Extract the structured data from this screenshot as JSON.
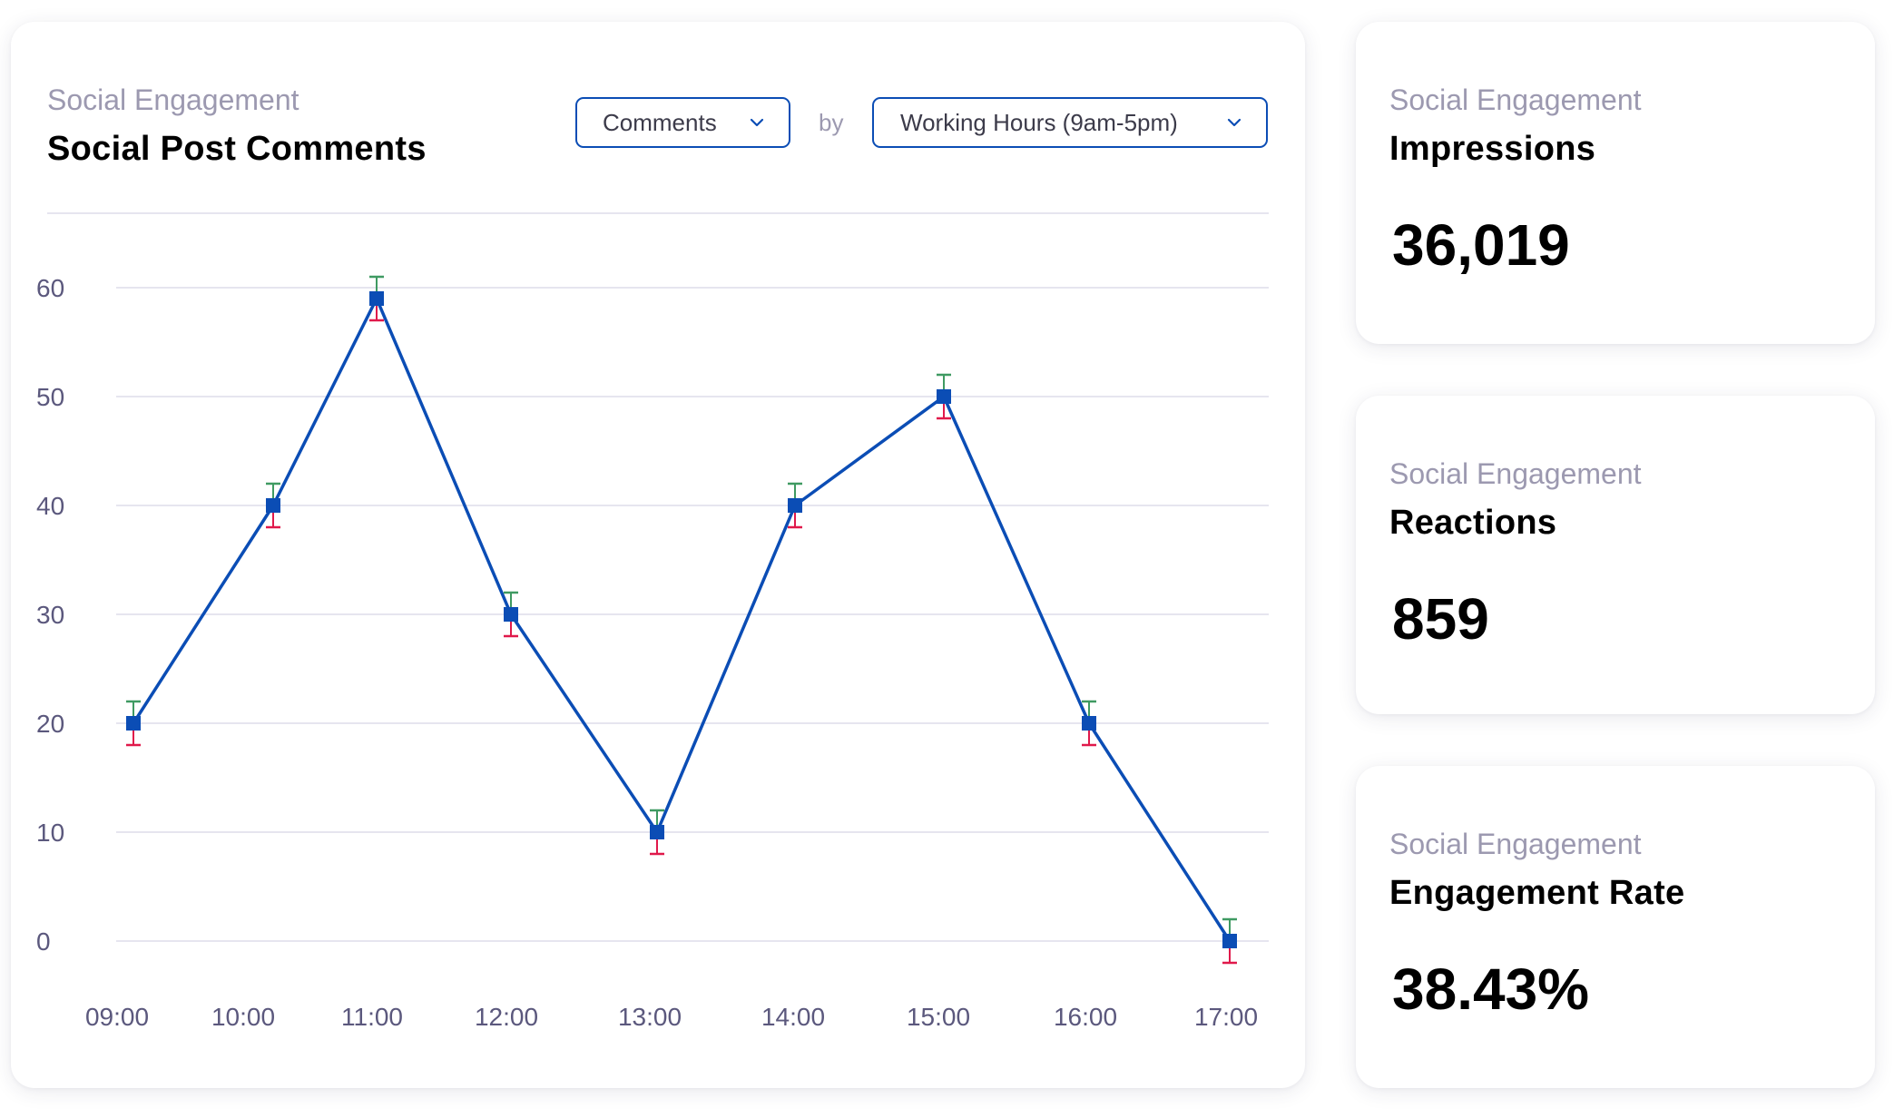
{
  "main_card": {
    "subtitle": "Social Engagement",
    "title": "Social Post Comments",
    "metric_dropdown": {
      "selected": "Comments",
      "icon": "chevron-down-icon"
    },
    "by_label": "by",
    "range_dropdown": {
      "selected": "Working Hours (9am-5pm)",
      "icon": "chevron-down-icon"
    }
  },
  "stat_cards": [
    {
      "subtitle": "Social Engagement",
      "title": "Impressions",
      "value": "36,019"
    },
    {
      "subtitle": "Social Engagement",
      "title": "Reactions",
      "value": "859"
    },
    {
      "subtitle": "Social Engagement",
      "title": "Engagement Rate",
      "value": "38.43%"
    }
  ],
  "colors": {
    "line": "#0b4db5",
    "marker": "#0b4db5",
    "error_upper": "#3f9a62",
    "error_lower": "#e0194b",
    "grid": "#e6e5ef",
    "tick_label": "#5b587d",
    "subtitle": "#9c99b0",
    "dropdown_border": "#0b4db5"
  },
  "chart_data": {
    "type": "line",
    "title": "Social Post Comments",
    "subtitle": "Social Engagement",
    "xlabel": "",
    "ylabel": "",
    "categories": [
      "09:00",
      "10:00",
      "11:00",
      "12:00",
      "13:00",
      "14:00",
      "15:00",
      "16:00",
      "17:00"
    ],
    "series": [
      {
        "name": "Comments",
        "values": [
          20,
          40,
          59,
          30,
          10,
          40,
          50,
          20,
          0
        ],
        "error_upper": [
          22,
          42,
          61,
          32,
          12,
          42,
          52,
          22,
          2
        ],
        "error_lower": [
          18,
          38,
          57,
          28,
          8,
          38,
          48,
          18,
          -2
        ]
      }
    ],
    "y_ticks": [
      0,
      10,
      20,
      30,
      40,
      50,
      60
    ],
    "ylim": [
      0,
      60
    ],
    "grid": true,
    "legend": "none",
    "markers": "square"
  }
}
